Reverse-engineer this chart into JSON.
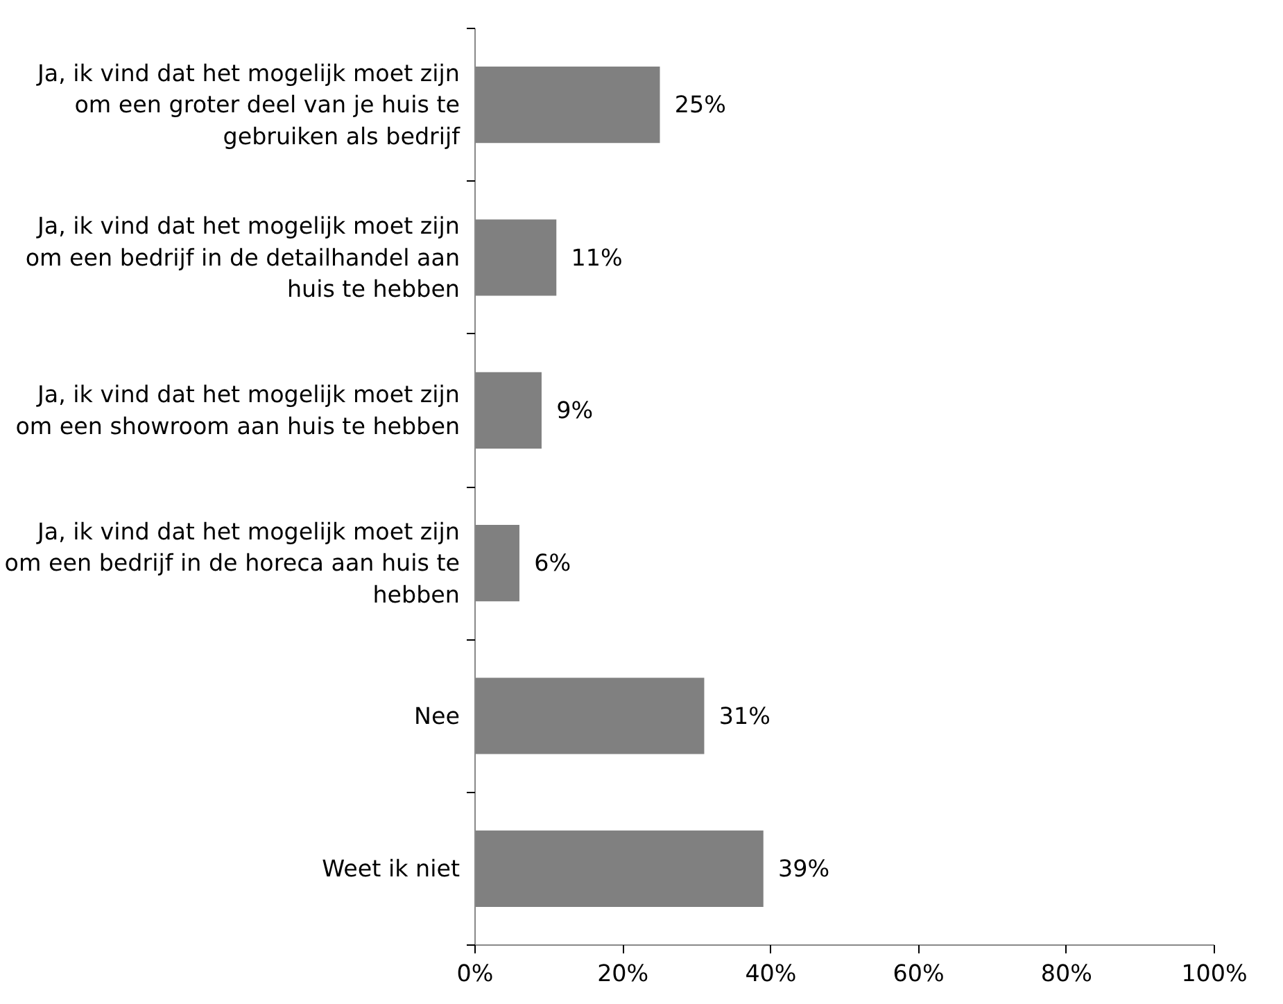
{
  "chart_data": {
    "type": "bar",
    "orientation": "horizontal",
    "categories": [
      "Ja, ik vind dat het mogelijk moet zijn om een groter deel van je huis te gebruiken als bedrijf",
      "Ja, ik vind dat het mogelijk moet zijn om een bedrijf in de detailhandel aan huis te hebben",
      "Ja, ik vind dat het mogelijk moet zijn om een showroom aan huis te hebben",
      "Ja, ik vind dat het mogelijk moet zijn om een bedrijf in de horeca aan huis te hebben",
      "Nee",
      "Weet ik niet"
    ],
    "values": [
      25,
      11,
      9,
      6,
      31,
      39
    ],
    "value_labels": [
      "25%",
      "11%",
      "9%",
      "6%",
      "31%",
      "39%"
    ],
    "color": "#808080",
    "xlim": [
      0,
      100
    ],
    "xticks": [
      {
        "value": 0,
        "label": "0%"
      },
      {
        "value": 20,
        "label": "20%"
      },
      {
        "value": 40,
        "label": "40%"
      },
      {
        "value": 60,
        "label": "60%"
      },
      {
        "value": 80,
        "label": "80%"
      },
      {
        "value": 100,
        "label": "100%"
      }
    ],
    "grid": false
  }
}
